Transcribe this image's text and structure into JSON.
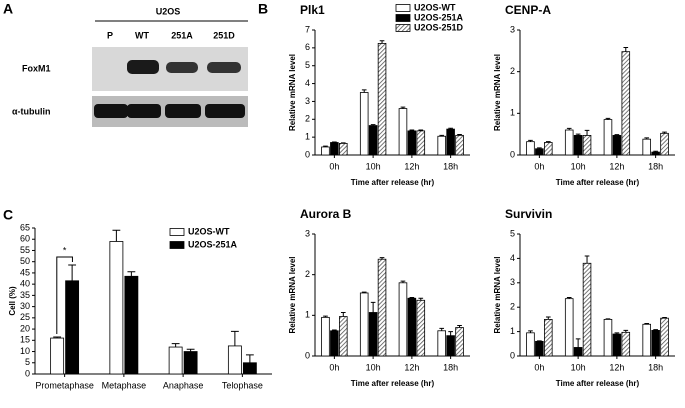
{
  "panels": {
    "a": "A",
    "b": "B",
    "c": "C"
  },
  "blot": {
    "cell_line": "U2OS",
    "lanes": [
      "P",
      "WT",
      "251A",
      "251D"
    ],
    "rows": [
      "FoxM1",
      "α-tubulin"
    ]
  },
  "chart_data": [
    {
      "type": "bar",
      "title": "Plk1",
      "x_label": "Time after release (hr)",
      "y_label": "Relative mRNA level",
      "categories": [
        "0h",
        "10h",
        "12h",
        "18h"
      ],
      "ylim": [
        0,
        7
      ],
      "yticks": [
        0,
        1,
        2,
        3,
        4,
        5,
        6,
        7
      ],
      "legend": true,
      "series": [
        {
          "name": "U2OS-WT",
          "color": "#ffffff",
          "values": [
            0.45,
            3.5,
            2.6,
            1.05
          ],
          "errors": [
            0.05,
            0.15,
            0.08,
            0.05
          ]
        },
        {
          "name": "U2OS-251A",
          "color": "#000000",
          "values": [
            0.7,
            1.65,
            1.35,
            1.45
          ],
          "errors": [
            0.03,
            0.05,
            0.05,
            0.05
          ]
        },
        {
          "name": "U2OS-251D",
          "color": "#555555",
          "hatch": true,
          "values": [
            0.65,
            6.25,
            1.35,
            1.1
          ],
          "errors": [
            0.03,
            0.15,
            0.05,
            0.05
          ]
        }
      ]
    },
    {
      "type": "bar",
      "title": "CENP-A",
      "x_label": "Time after release (hr)",
      "y_label": "Relative mRNA level",
      "categories": [
        "0h",
        "10h",
        "12h",
        "18h"
      ],
      "ylim": [
        0,
        3
      ],
      "yticks": [
        0,
        1,
        2,
        3
      ],
      "series": [
        {
          "color": "#ffffff",
          "values": [
            0.32,
            0.6,
            0.85,
            0.38
          ],
          "errors": [
            0.03,
            0.04,
            0.03,
            0.03
          ]
        },
        {
          "color": "#000000",
          "values": [
            0.15,
            0.47,
            0.47,
            0.07
          ],
          "errors": [
            0.02,
            0.03,
            0.02,
            0.02
          ]
        },
        {
          "color": "#555555",
          "hatch": true,
          "values": [
            0.3,
            0.47,
            2.48,
            0.52
          ],
          "errors": [
            0.02,
            0.12,
            0.1,
            0.03
          ]
        }
      ]
    },
    {
      "type": "bar",
      "title": "Aurora B",
      "x_label": "Time after release (hr)",
      "y_label": "Relative mRNA level",
      "categories": [
        "0h",
        "10h",
        "12h",
        "18h"
      ],
      "ylim": [
        0,
        3
      ],
      "yticks": [
        0,
        1,
        2,
        3
      ],
      "series": [
        {
          "color": "#ffffff",
          "values": [
            0.95,
            1.55,
            1.8,
            0.62
          ],
          "errors": [
            0.03,
            0.02,
            0.04,
            0.06
          ]
        },
        {
          "color": "#000000",
          "values": [
            0.62,
            1.07,
            1.42,
            0.5
          ],
          "errors": [
            0.02,
            0.25,
            0.02,
            0.1
          ]
        },
        {
          "color": "#555555",
          "hatch": true,
          "values": [
            0.97,
            2.38,
            1.37,
            0.7
          ],
          "errors": [
            0.1,
            0.04,
            0.05,
            0.05
          ]
        }
      ]
    },
    {
      "type": "bar",
      "title": "Survivin",
      "x_label": "Time after release (hr)",
      "y_label": "Relative mRNA level",
      "categories": [
        "0h",
        "10h",
        "12h",
        "18h"
      ],
      "ylim": [
        0,
        5
      ],
      "yticks": [
        0,
        1,
        2,
        3,
        4,
        5
      ],
      "series": [
        {
          "color": "#ffffff",
          "values": [
            0.95,
            2.35,
            1.5,
            1.3
          ],
          "errors": [
            0.08,
            0.05,
            0.02,
            0.03
          ]
        },
        {
          "color": "#000000",
          "values": [
            0.6,
            0.35,
            0.9,
            1.05
          ],
          "errors": [
            0.02,
            0.35,
            0.05,
            0.03
          ]
        },
        {
          "color": "#555555",
          "hatch": true,
          "values": [
            1.5,
            3.8,
            0.97,
            1.55
          ],
          "errors": [
            0.1,
            0.3,
            0.08,
            0.03
          ]
        }
      ]
    },
    {
      "type": "bar",
      "y_label": "Cell (%)",
      "annotation": "*",
      "categories": [
        "Prometaphase",
        "Metaphase",
        "Anaphase",
        "Telophase"
      ],
      "ylim": [
        0,
        65
      ],
      "yticks": [
        0,
        5,
        10,
        15,
        20,
        25,
        30,
        35,
        40,
        45,
        50,
        55,
        60,
        65
      ],
      "legend": true,
      "series": [
        {
          "name": "U2OS-WT",
          "color": "#ffffff",
          "values": [
            16,
            59,
            12,
            12.5
          ],
          "errors": [
            0.5,
            5,
            1.5,
            6.5
          ]
        },
        {
          "name": "U2OS-251A",
          "color": "#000000",
          "values": [
            41.5,
            43.5,
            10,
            5
          ],
          "errors": [
            7,
            2,
            1,
            3.5
          ]
        }
      ]
    }
  ]
}
